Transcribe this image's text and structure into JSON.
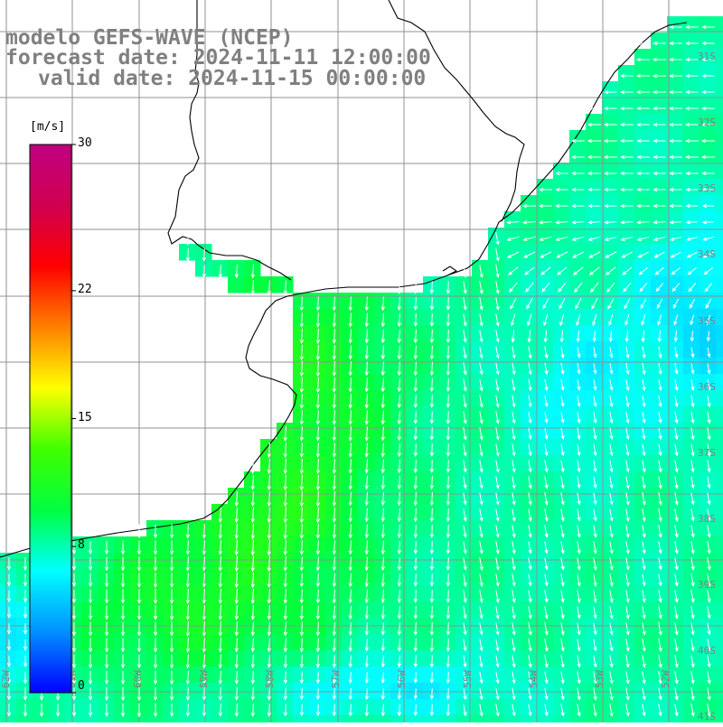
{
  "title": {
    "line1": "modelo GEFS-WAVE (NCEP)",
    "line2": "forecast date: 2024-11-11 12:00:00",
    "line3": "valid date: 2024-11-15 00:00:00"
  },
  "colorbar": {
    "unit": "[m/s]",
    "ticks": [
      {
        "value": 30,
        "label": "30"
      },
      {
        "value": 22,
        "label": "22"
      },
      {
        "value": 15,
        "label": "15"
      },
      {
        "value": 8,
        "label": "8"
      },
      {
        "value": 0,
        "label": "0"
      }
    ],
    "stops": [
      "#0000ff",
      "#0090ff",
      "#00ffff",
      "#00ff40",
      "#40ff00",
      "#ffff00",
      "#ff8000",
      "#ff0000",
      "#d00050",
      "#c00080"
    ]
  },
  "map": {
    "lat_labels": [
      "31S",
      "32S",
      "33S",
      "34S",
      "35S",
      "36S",
      "37S",
      "38S",
      "39S",
      "40S",
      "41S"
    ],
    "lon_labels": [
      "62W",
      "61W",
      "60W",
      "59W",
      "58W",
      "57W",
      "56W",
      "55W",
      "54W",
      "53W",
      "52W",
      "51W"
    ],
    "colors": {
      "land": "#ffffff",
      "grid": "#909090",
      "coast": "#000000",
      "vectors": "#ffffff",
      "labels": "#808080"
    }
  }
}
